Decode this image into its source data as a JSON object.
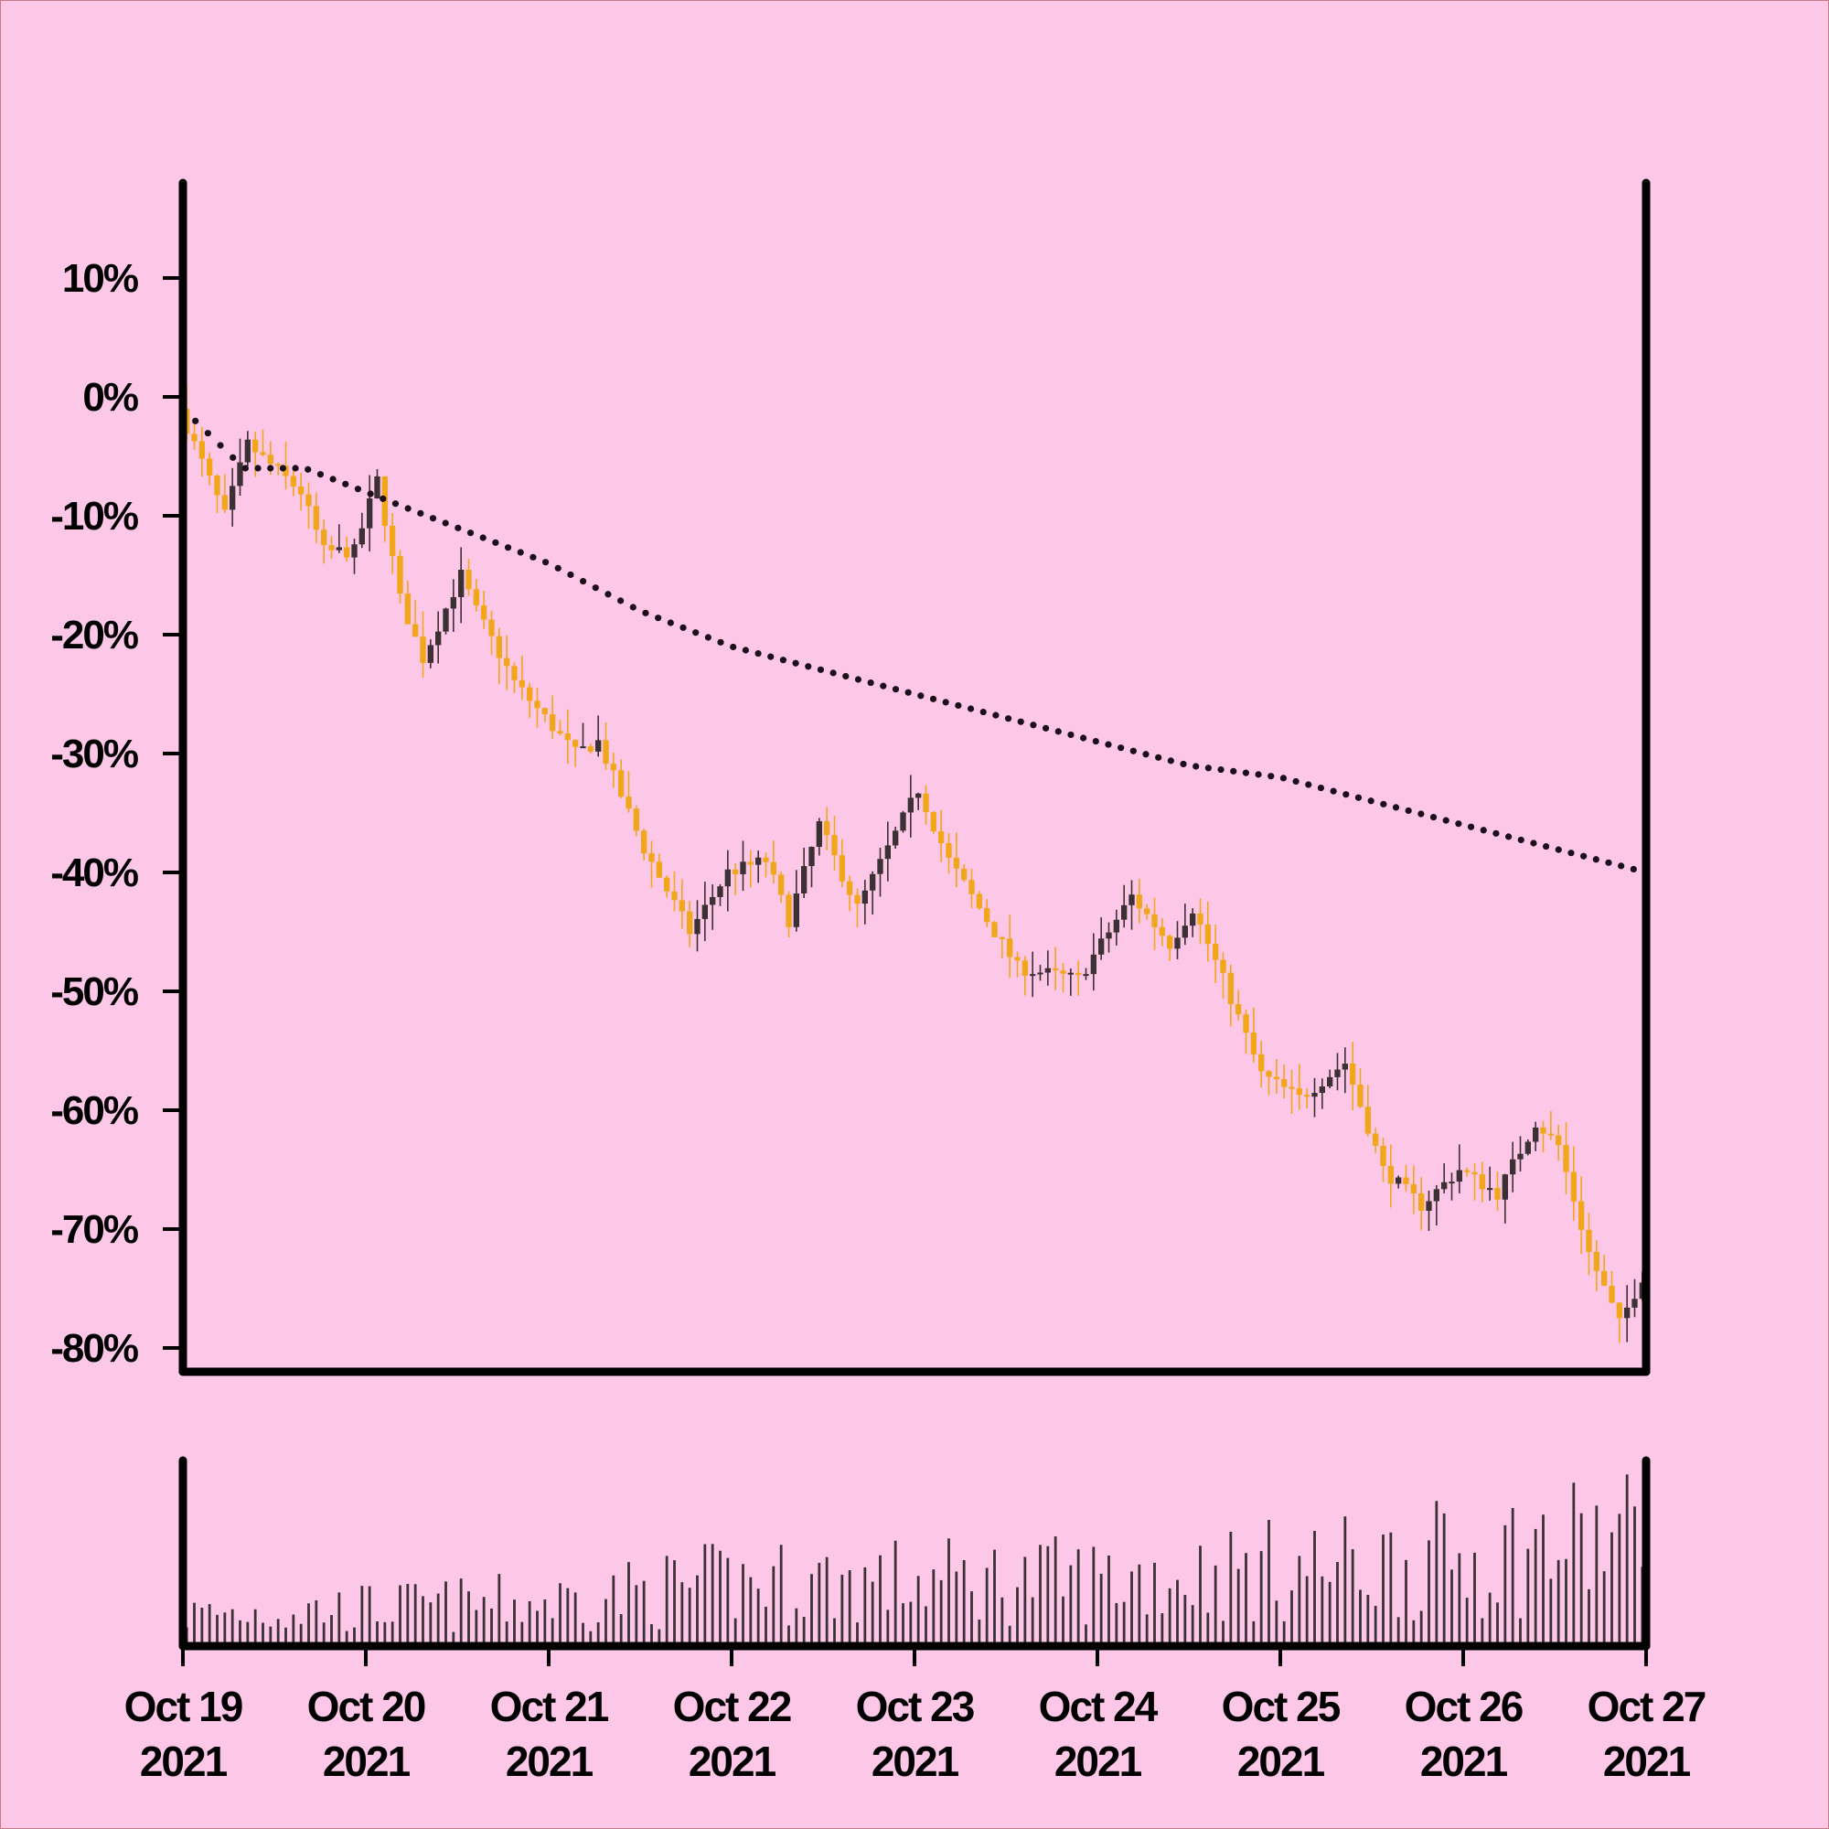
{
  "colors": {
    "background": "#fdc8e8",
    "candle_up": "#3b3034",
    "candle_down": "#f2a61a",
    "wick_up": "#3b3034",
    "wick_down": "#f2a61a",
    "ma_dots": "#1c0f1a",
    "volume_bar": "#3b3034",
    "axis": "#000000"
  },
  "chart_data": {
    "type": "candlestick",
    "title": "",
    "xlabel": "",
    "ylabel": "",
    "y_scale": "percent change",
    "ylim": [
      -82,
      18
    ],
    "yticks": [
      10,
      0,
      -10,
      -20,
      -30,
      -40,
      -50,
      -60,
      -70,
      -80
    ],
    "ytick_labels": [
      "10%",
      "0%",
      "-10%",
      "-20%",
      "-30%",
      "-40%",
      "-50%",
      "-60%",
      "-70%",
      "-80%"
    ],
    "x_range": [
      "2021-10-19",
      "2021-10-27"
    ],
    "xticks": [
      "2021-10-19",
      "2021-10-20",
      "2021-10-21",
      "2021-10-22",
      "2021-10-23",
      "2021-10-24",
      "2021-10-25",
      "2021-10-26",
      "2021-10-27"
    ],
    "xtick_labels": [
      [
        "Oct 19",
        "2021"
      ],
      [
        "Oct 20",
        "2021"
      ],
      [
        "Oct 21",
        "2021"
      ],
      [
        "Oct 22",
        "2021"
      ],
      [
        "Oct 23",
        "2021"
      ],
      [
        "Oct 24",
        "2021"
      ],
      [
        "Oct 25",
        "2021"
      ],
      [
        "Oct 26",
        "2021"
      ],
      [
        "Oct 27",
        "2021"
      ]
    ],
    "candles_per_day": 24,
    "close_path": [
      [
        "2021-10-19",
        -1
      ],
      [
        "2021-10-19 06:00",
        -10
      ],
      [
        "2021-10-19 09:00",
        -4
      ],
      [
        "2021-10-19 16:00",
        -8
      ],
      [
        "2021-10-19 19:00",
        -13
      ],
      [
        "2021-10-19 23:00",
        -13
      ],
      [
        "2021-10-20 02:00",
        -7
      ],
      [
        "2021-10-20 05:00",
        -17
      ],
      [
        "2021-10-20 08:00",
        -22
      ],
      [
        "2021-10-20 13:00",
        -15
      ],
      [
        "2021-10-20 15:00",
        -18
      ],
      [
        "2021-10-20 20:00",
        -24
      ],
      [
        "2021-10-21 04:00",
        -30
      ],
      [
        "2021-10-21 07:00",
        -29
      ],
      [
        "2021-10-21 13:00",
        -38
      ],
      [
        "2021-10-21 19:00",
        -45
      ],
      [
        "2021-10-22 00:00",
        -40
      ],
      [
        "2021-10-22 05:00",
        -39
      ],
      [
        "2021-10-22 08:00",
        -44
      ],
      [
        "2021-10-22 12:00",
        -36
      ],
      [
        "2021-10-22 17:00",
        -43
      ],
      [
        "2021-10-23 01:00",
        -33
      ],
      [
        "2021-10-23 05:00",
        -39
      ],
      [
        "2021-10-23 10:00",
        -44
      ],
      [
        "2021-10-23 14:00",
        -48
      ],
      [
        "2021-10-23 22:00",
        -49
      ],
      [
        "2021-10-24 05:00",
        -42
      ],
      [
        "2021-10-24 10:00",
        -46
      ],
      [
        "2021-10-24 13:00",
        -43
      ],
      [
        "2021-10-24 17:00",
        -49
      ],
      [
        "2021-10-24 22:00",
        -57
      ],
      [
        "2021-10-25 03:00",
        -59
      ],
      [
        "2021-10-25 09:00",
        -56
      ],
      [
        "2021-10-25 14:00",
        -65
      ],
      [
        "2021-10-25 19:00",
        -68
      ],
      [
        "2021-10-26 00:00",
        -65
      ],
      [
        "2021-10-26 05:00",
        -67
      ],
      [
        "2021-10-26 10:00",
        -61
      ],
      [
        "2021-10-26 13:00",
        -63
      ],
      [
        "2021-10-26 17:00",
        -72
      ],
      [
        "2021-10-26 21:00",
        -78
      ],
      [
        "2021-10-27 00:00",
        -74
      ]
    ],
    "moving_average": [
      [
        "2021-10-19",
        -1
      ],
      [
        "2021-10-19 08:00",
        -6
      ],
      [
        "2021-10-19 16:00",
        -6
      ],
      [
        "2021-10-20 00:00",
        -8
      ],
      [
        "2021-10-20 08:00",
        -10
      ],
      [
        "2021-10-20 16:00",
        -12
      ],
      [
        "2021-10-21 00:00",
        -14
      ],
      [
        "2021-10-21 12:00",
        -18
      ],
      [
        "2021-10-22 00:00",
        -21
      ],
      [
        "2021-10-22 12:00",
        -23
      ],
      [
        "2021-10-23 00:00",
        -25
      ],
      [
        "2021-10-23 12:00",
        -27
      ],
      [
        "2021-10-24 00:00",
        -29
      ],
      [
        "2021-10-24 12:00",
        -31
      ],
      [
        "2021-10-25 00:00",
        -32
      ],
      [
        "2021-10-25 12:00",
        -34
      ],
      [
        "2021-10-26 00:00",
        -36
      ],
      [
        "2021-10-26 12:00",
        -38
      ],
      [
        "2021-10-27 00:00",
        -40
      ]
    ],
    "volume_trend": [
      [
        "2021-10-19",
        0.2
      ],
      [
        "2021-10-21",
        0.28
      ],
      [
        "2021-10-22",
        0.4
      ],
      [
        "2021-10-24",
        0.42
      ],
      [
        "2021-10-25",
        0.48
      ],
      [
        "2021-10-26",
        0.55
      ],
      [
        "2021-10-27",
        0.7
      ]
    ],
    "grid": false,
    "legend": "none"
  }
}
